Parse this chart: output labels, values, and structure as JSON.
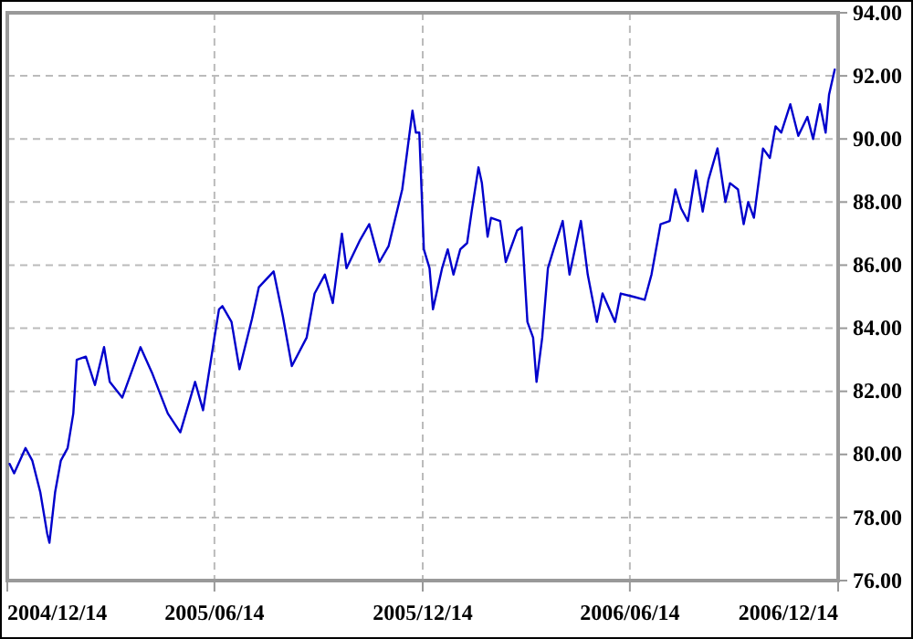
{
  "chart_data": {
    "type": "line",
    "grid": true,
    "xlim": [
      "2004-12-14",
      "2006-12-14"
    ],
    "ylim": [
      76,
      94
    ],
    "xticks": [
      {
        "value": "2004-12-14",
        "label": "2004/12/14"
      },
      {
        "value": "2005-06-14",
        "label": "2005/06/14"
      },
      {
        "value": "2005-12-14",
        "label": "2005/12/14"
      },
      {
        "value": "2006-06-14",
        "label": "2006/06/14"
      },
      {
        "value": "2006-12-14",
        "label": "2006/12/14"
      }
    ],
    "yticks": [
      {
        "value": 76,
        "label": "76.00"
      },
      {
        "value": 78,
        "label": "78.00"
      },
      {
        "value": 80,
        "label": "80.00"
      },
      {
        "value": 82,
        "label": "82.00"
      },
      {
        "value": 84,
        "label": "84.00"
      },
      {
        "value": 86,
        "label": "86.00"
      },
      {
        "value": 88,
        "label": "88.00"
      },
      {
        "value": 90,
        "label": "90.00"
      },
      {
        "value": 92,
        "label": "92.00"
      },
      {
        "value": 94,
        "label": "94.00"
      }
    ],
    "x": [
      "2004-12-16",
      "2004-12-20",
      "2004-12-30",
      "2005-01-05",
      "2005-01-12",
      "2005-01-18",
      "2005-01-20",
      "2005-01-25",
      "2005-01-30",
      "2005-02-05",
      "2005-02-10",
      "2005-02-13",
      "2005-02-21",
      "2005-03-01",
      "2005-03-09",
      "2005-03-14",
      "2005-03-25",
      "2005-04-10",
      "2005-04-20",
      "2005-05-04",
      "2005-05-15",
      "2005-05-28",
      "2005-06-04",
      "2005-06-14",
      "2005-06-18",
      "2005-06-21",
      "2005-06-29",
      "2005-07-06",
      "2005-07-17",
      "2005-07-23",
      "2005-08-05",
      "2005-08-13",
      "2005-08-21",
      "2005-09-03",
      "2005-09-10",
      "2005-09-19",
      "2005-09-26",
      "2005-10-04",
      "2005-10-08",
      "2005-10-20",
      "2005-10-28",
      "2005-11-06",
      "2005-11-14",
      "2005-11-26",
      "2005-11-30",
      "2005-12-05",
      "2005-12-08",
      "2005-12-11",
      "2005-12-15",
      "2005-12-20",
      "2005-12-23",
      "2005-12-31",
      "2006-01-05",
      "2006-01-10",
      "2006-01-16",
      "2006-01-22",
      "2006-01-26",
      "2006-02-01",
      "2006-02-04",
      "2006-02-09",
      "2006-02-12",
      "2006-02-20",
      "2006-02-25",
      "2006-03-07",
      "2006-03-11",
      "2006-03-16",
      "2006-03-21",
      "2006-03-24",
      "2006-03-29",
      "2006-04-03",
      "2006-04-08",
      "2006-04-16",
      "2006-04-22",
      "2006-05-02",
      "2006-05-08",
      "2006-05-16",
      "2006-05-21",
      "2006-06-01",
      "2006-06-06",
      "2006-06-17",
      "2006-06-27",
      "2006-07-03",
      "2006-07-11",
      "2006-07-19",
      "2006-07-24",
      "2006-07-29",
      "2006-08-04",
      "2006-08-11",
      "2006-08-17",
      "2006-08-22",
      "2006-08-30",
      "2006-09-06",
      "2006-09-10",
      "2006-09-17",
      "2006-09-22",
      "2006-09-26",
      "2006-10-01",
      "2006-10-09",
      "2006-10-15",
      "2006-10-20",
      "2006-10-25",
      "2006-11-02",
      "2006-11-09",
      "2006-11-17",
      "2006-11-22",
      "2006-11-28",
      "2006-12-03",
      "2006-12-06",
      "2006-12-11"
    ],
    "series": [
      {
        "color": "#0000cc",
        "values": [
          79.7,
          79.4,
          80.2,
          79.8,
          78.8,
          77.5,
          77.2,
          78.8,
          79.8,
          80.2,
          81.3,
          83.0,
          83.1,
          82.2,
          83.4,
          82.3,
          81.8,
          83.4,
          82.6,
          81.3,
          80.7,
          82.3,
          81.4,
          83.7,
          84.6,
          84.7,
          84.2,
          82.7,
          84.3,
          85.3,
          85.8,
          84.4,
          82.8,
          83.7,
          85.1,
          85.7,
          84.8,
          87.0,
          85.9,
          86.8,
          87.3,
          86.1,
          86.6,
          88.4,
          89.5,
          90.9,
          90.2,
          90.2,
          86.5,
          85.9,
          84.6,
          85.9,
          86.5,
          85.7,
          86.5,
          86.7,
          87.7,
          89.1,
          88.6,
          86.9,
          87.5,
          87.4,
          86.1,
          87.1,
          87.2,
          84.2,
          83.7,
          82.3,
          83.7,
          85.9,
          86.5,
          87.4,
          85.7,
          87.4,
          85.7,
          84.2,
          85.1,
          84.2,
          85.1,
          85.0,
          84.9,
          85.7,
          87.3,
          87.4,
          88.4,
          87.8,
          87.4,
          89.0,
          87.7,
          88.7,
          89.7,
          88.0,
          88.6,
          88.4,
          87.3,
          88.0,
          87.5,
          89.7,
          89.4,
          90.4,
          90.2,
          91.1,
          90.1,
          90.7,
          90.0,
          91.1,
          90.2,
          91.4,
          92.2
        ]
      }
    ]
  }
}
